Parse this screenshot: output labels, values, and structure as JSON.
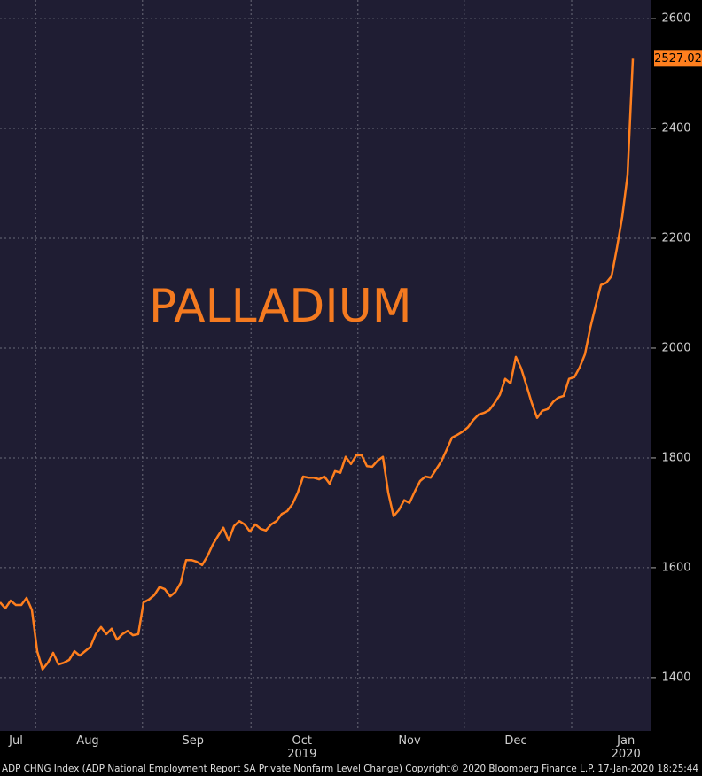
{
  "chart_data": {
    "type": "line",
    "annotation": "PALLADIUM",
    "footer": "ADP CHNG Index (ADP National Employment Report SA Private Nonfarm Level Change)  Copyright© 2020 Bloomberg Finance L.P.   17-Jan-2020 18:25:44",
    "series": [
      {
        "name": "PALLADIUM",
        "color": "#ff7f1e",
        "values": [
          1537,
          1526,
          1540,
          1532,
          1532,
          1545,
          1523,
          1448,
          1415,
          1427,
          1445,
          1424,
          1427,
          1432,
          1448,
          1440,
          1448,
          1456,
          1479,
          1492,
          1479,
          1489,
          1469,
          1479,
          1485,
          1477,
          1479,
          1537,
          1542,
          1550,
          1565,
          1561,
          1548,
          1556,
          1573,
          1614,
          1614,
          1611,
          1605,
          1621,
          1642,
          1658,
          1673,
          1650,
          1676,
          1685,
          1679,
          1666,
          1679,
          1671,
          1668,
          1679,
          1685,
          1698,
          1703,
          1716,
          1737,
          1766,
          1764,
          1764,
          1761,
          1766,
          1753,
          1776,
          1773,
          1802,
          1789,
          1805,
          1805,
          1785,
          1784,
          1795,
          1802,
          1737,
          1694,
          1705,
          1723,
          1718,
          1739,
          1758,
          1766,
          1764,
          1779,
          1794,
          1815,
          1837,
          1842,
          1848,
          1856,
          1869,
          1879,
          1882,
          1887,
          1900,
          1915,
          1944,
          1936,
          1984,
          1963,
          1932,
          1900,
          1873,
          1886,
          1889,
          1902,
          1910,
          1913,
          1944,
          1947,
          1965,
          1989,
          2037,
          2077,
          2115,
          2119,
          2131,
          2182,
          2239,
          2315,
          2527.02
        ],
        "last_value_label": "2527.02"
      }
    ],
    "xlim": [
      0,
      122.5
    ],
    "xticks": [
      {
        "value": 3,
        "label": "Jul"
      },
      {
        "value": 16.5,
        "label": "Aug"
      },
      {
        "value": 36.3,
        "label": "Sep"
      },
      {
        "value": 56.8,
        "label": "Oct"
      },
      {
        "value": 77,
        "label": "Nov"
      },
      {
        "value": 97,
        "label": "Dec"
      },
      {
        "value": 117.7,
        "label": "Jan"
      }
    ],
    "year_labels": [
      {
        "value": 56.8,
        "label": "2019"
      },
      {
        "value": 117.7,
        "label": "2020"
      }
    ],
    "xgrid": [
      6.7,
      26.8,
      47.2,
      67.3,
      87.3,
      107.5
    ],
    "ylim": [
      1303,
      2634
    ],
    "yticks": [
      1400,
      1600,
      1800,
      2000,
      2200,
      2400,
      2600
    ],
    "grid": true
  }
}
